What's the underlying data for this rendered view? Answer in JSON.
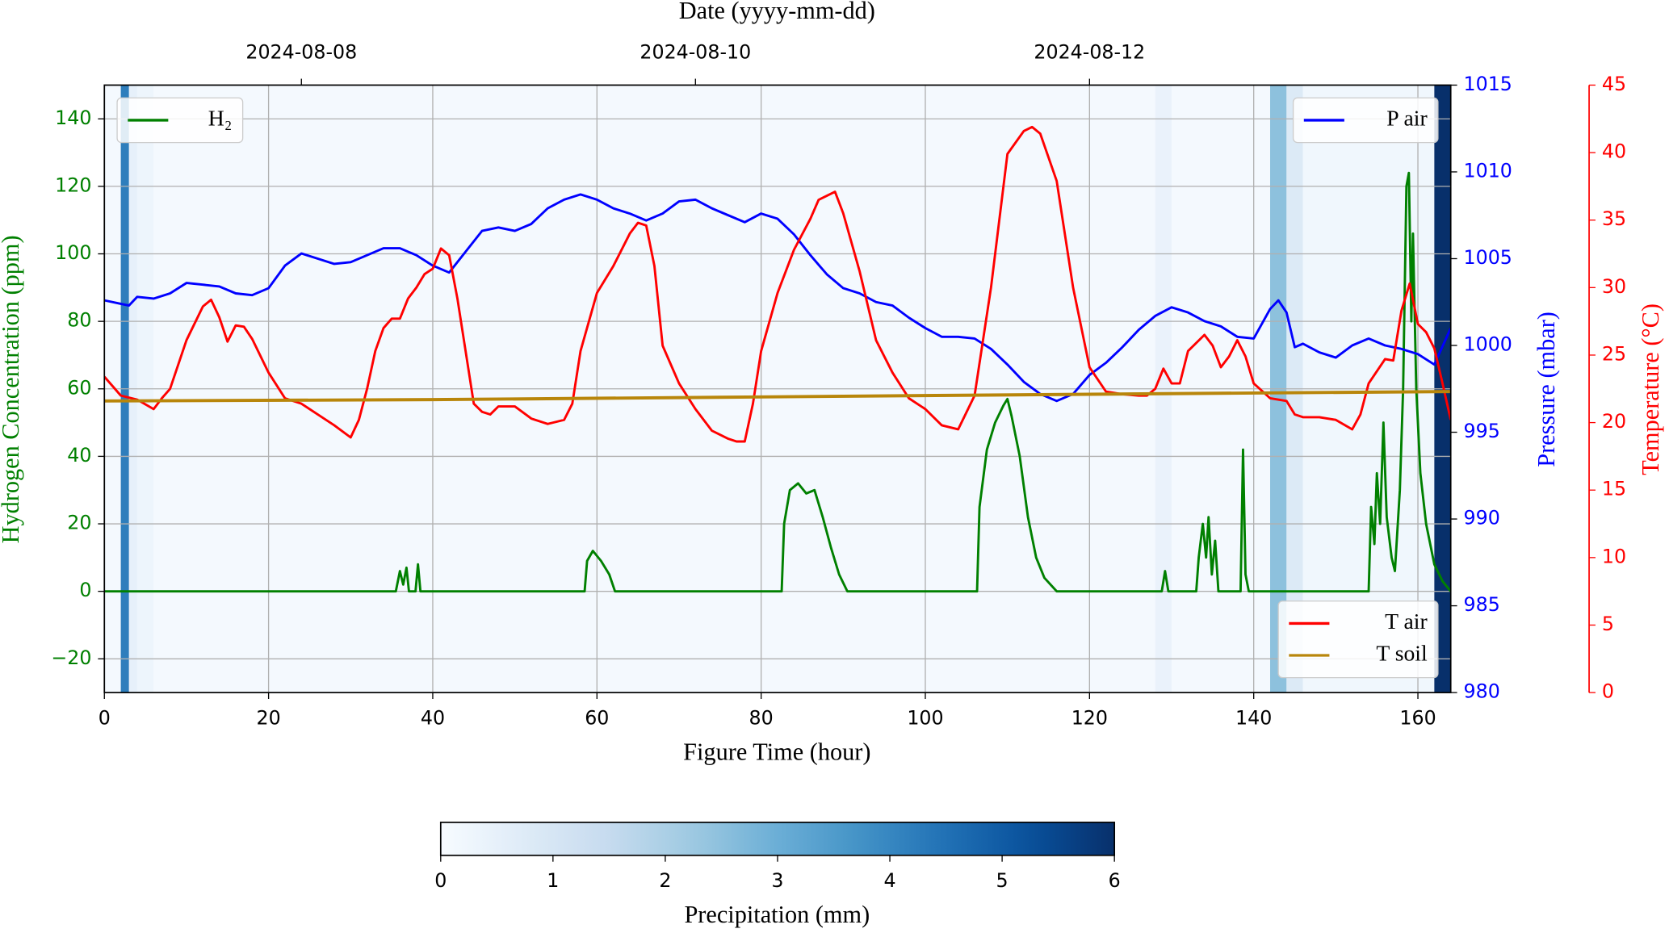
{
  "chart_data": {
    "type": "line",
    "xlabel": "Figure Time (hour)",
    "x2label": "Date (yyyy-mm-dd)",
    "ylabel": "Hydrogen Concentration (ppm)",
    "y2label": "Pressure (mbar)",
    "y3label": "Temperature (°C)",
    "xlim": [
      0,
      164
    ],
    "xticks": [
      0,
      20,
      40,
      60,
      80,
      100,
      120,
      140,
      160
    ],
    "x2ticks": [
      {
        "value": 24,
        "label": "2024-08-08"
      },
      {
        "value": 72,
        "label": "2024-08-10"
      },
      {
        "value": 120,
        "label": "2024-08-12"
      }
    ],
    "ylim": [
      -30,
      150
    ],
    "yticks": [
      {
        "value": -20,
        "label": "−20"
      },
      0,
      20,
      40,
      60,
      80,
      100,
      120,
      140
    ],
    "y2lim": [
      980,
      1015
    ],
    "y2ticks": [
      980,
      985,
      990,
      995,
      1000,
      1005,
      1010,
      1015
    ],
    "y3lim": [
      0,
      45
    ],
    "y3ticks": [
      0,
      5,
      10,
      15,
      20,
      25,
      30,
      35,
      40,
      45
    ],
    "grid": true,
    "legend": {
      "y": "upper left",
      "y2": "upper right",
      "y3": "lower right"
    },
    "series": [
      {
        "name": "H₂",
        "color": "#008000",
        "axis": "y",
        "x": [
          0,
          35.5,
          36,
          36.4,
          36.8,
          37.1,
          37.9,
          38.2,
          38.5,
          58.5,
          58.8,
          59.5,
          60.5,
          61.5,
          62.2,
          82.5,
          82.8,
          83.5,
          84.5,
          85.5,
          86.5,
          87.5,
          88.5,
          89.5,
          90.5,
          106.3,
          106.6,
          107.5,
          108.5,
          109.5,
          110,
          110.5,
          111.5,
          112.5,
          113.5,
          114.5,
          116,
          128.8,
          129.2,
          129.6,
          133,
          133.3,
          133.8,
          134.2,
          134.5,
          134.9,
          135.3,
          135.7,
          138.4,
          138.7,
          139,
          139.4,
          154,
          154.3,
          154.7,
          155,
          155.4,
          155.8,
          156.2,
          156.8,
          157.2,
          157.8,
          158.2,
          158.6,
          158.9,
          159.2,
          159.4,
          159.8,
          160.3,
          161,
          162,
          163,
          164
        ],
        "values": [
          0,
          0,
          6,
          2,
          7,
          0,
          0,
          8,
          0,
          0,
          9,
          12,
          9,
          5,
          0,
          0,
          20,
          30,
          32,
          29,
          30,
          22,
          13,
          5,
          0,
          0,
          25,
          42,
          50,
          55,
          57,
          52,
          40,
          22,
          10,
          4,
          0,
          0,
          6,
          0,
          0,
          10,
          20,
          10,
          22,
          5,
          15,
          0,
          0,
          42,
          5,
          0,
          0,
          25,
          14,
          35,
          20,
          50,
          22,
          10,
          6,
          30,
          60,
          120,
          124,
          80,
          106,
          60,
          35,
          20,
          8,
          3,
          0
        ]
      },
      {
        "name": "P air",
        "color": "#0000ff",
        "axis": "y2",
        "x": [
          0,
          2,
          3,
          4,
          6,
          8,
          10,
          12,
          14,
          16,
          18,
          20,
          22,
          24,
          26,
          28,
          30,
          32,
          34,
          36,
          38,
          40,
          42,
          44,
          46,
          48,
          50,
          52,
          54,
          56,
          58,
          60,
          62,
          64,
          66,
          68,
          70,
          72,
          74,
          76,
          78,
          80,
          82,
          84,
          86,
          88,
          90,
          92,
          94,
          96,
          98,
          100,
          102,
          104,
          106,
          108,
          110,
          112,
          114,
          116,
          118,
          120,
          122,
          124,
          126,
          128,
          130,
          132,
          134,
          136,
          138,
          140,
          142,
          143,
          144,
          145,
          146,
          148,
          150,
          152,
          154,
          156,
          158,
          160,
          162,
          164
        ],
        "values": [
          1002.6,
          1002.4,
          1002.3,
          1002.8,
          1002.7,
          1003.0,
          1003.6,
          1003.5,
          1003.4,
          1003.0,
          1002.9,
          1003.3,
          1004.6,
          1005.3,
          1005.0,
          1004.7,
          1004.8,
          1005.2,
          1005.6,
          1005.6,
          1005.2,
          1004.6,
          1004.2,
          1005.4,
          1006.6,
          1006.8,
          1006.6,
          1007.0,
          1007.9,
          1008.4,
          1008.7,
          1008.4,
          1007.9,
          1007.6,
          1007.2,
          1007.6,
          1008.3,
          1008.4,
          1007.9,
          1007.5,
          1007.1,
          1007.6,
          1007.3,
          1006.4,
          1005.2,
          1004.1,
          1003.3,
          1003.0,
          1002.5,
          1002.3,
          1001.6,
          1001.0,
          1000.5,
          1000.5,
          1000.4,
          999.8,
          998.9,
          997.9,
          997.2,
          996.8,
          997.2,
          998.3,
          999.0,
          999.9,
          1000.9,
          1001.7,
          1002.2,
          1001.9,
          1001.4,
          1001.1,
          1000.5,
          1000.4,
          1002.1,
          1002.6,
          1001.9,
          999.9,
          1000.1,
          999.6,
          999.3,
          1000.0,
          1000.4,
          1000.0,
          999.8,
          999.5,
          998.9,
          1001.0
        ]
      },
      {
        "name": "T air",
        "color": "#ff0000",
        "axis": "y3",
        "x": [
          0,
          2,
          4,
          6,
          7,
          8,
          10,
          12,
          13,
          14,
          15,
          16,
          17,
          18,
          20,
          22,
          24,
          26,
          28,
          30,
          31,
          32,
          33,
          34,
          35,
          36,
          37,
          38,
          39,
          40,
          41,
          42,
          43,
          44,
          45,
          46,
          47,
          48,
          50,
          52,
          54,
          56,
          57,
          58,
          60,
          62,
          64,
          65,
          66,
          67,
          68,
          70,
          72,
          74,
          76,
          77,
          78,
          79,
          80,
          82,
          84,
          86,
          87,
          89,
          90,
          92,
          94,
          96,
          98,
          100,
          102,
          104,
          106,
          108,
          110,
          112,
          113,
          114,
          116,
          118,
          120,
          122,
          124,
          126,
          127,
          128,
          129,
          130,
          131,
          132,
          134,
          135,
          136,
          137,
          138,
          139,
          140,
          142,
          144,
          145,
          146,
          148,
          150,
          152,
          153,
          154,
          156,
          157,
          158,
          159,
          160,
          161,
          162,
          163,
          164
        ],
        "values": [
          23.4,
          22.0,
          21.7,
          21.0,
          21.8,
          22.5,
          26.1,
          28.6,
          29.1,
          27.8,
          26.0,
          27.2,
          27.1,
          26.2,
          23.7,
          21.8,
          21.4,
          20.6,
          19.8,
          18.9,
          20.2,
          22.5,
          25.3,
          27.0,
          27.7,
          27.7,
          29.2,
          30.0,
          31.0,
          31.4,
          32.9,
          32.4,
          29.2,
          25.3,
          21.4,
          20.8,
          20.6,
          21.2,
          21.2,
          20.3,
          19.9,
          20.2,
          21.4,
          25.3,
          29.6,
          31.6,
          34.0,
          34.8,
          34.6,
          31.6,
          25.7,
          22.9,
          21.0,
          19.4,
          18.8,
          18.6,
          18.6,
          21.4,
          25.3,
          29.6,
          32.8,
          35.1,
          36.5,
          37.1,
          35.5,
          31.2,
          26.1,
          23.7,
          21.8,
          21.0,
          19.8,
          19.5,
          22.0,
          30.0,
          39.9,
          41.6,
          41.9,
          41.4,
          37.9,
          30.0,
          24.1,
          22.3,
          22.1,
          22.0,
          22.0,
          22.5,
          24.0,
          22.9,
          22.9,
          25.3,
          26.5,
          25.7,
          24.1,
          24.9,
          26.1,
          24.9,
          22.9,
          21.8,
          21.6,
          20.6,
          20.4,
          20.4,
          20.2,
          19.5,
          20.6,
          22.9,
          24.7,
          24.6,
          28.3,
          30.3,
          27.3,
          26.7,
          25.5,
          22.9,
          20.2
        ]
      },
      {
        "name": "T soil",
        "color": "#b8860b",
        "axis": "y3",
        "x": [
          0,
          40,
          80,
          120,
          164
        ],
        "values": [
          21.6,
          21.7,
          21.9,
          22.1,
          22.3
        ]
      }
    ],
    "precipitation": {
      "label": "Precipitation (mm)",
      "colormap": "Blues",
      "clim": [
        0,
        6
      ],
      "ticks": [
        0,
        1,
        2,
        3,
        4,
        5,
        6
      ],
      "bins": [
        0,
        2,
        3,
        4,
        6,
        128,
        130,
        142,
        144,
        146,
        162,
        164
      ],
      "values": [
        0.1,
        4.2,
        0.5,
        0.3,
        0.1,
        0.4,
        0.1,
        2.5,
        0.8,
        0.2,
        6
      ]
    }
  }
}
